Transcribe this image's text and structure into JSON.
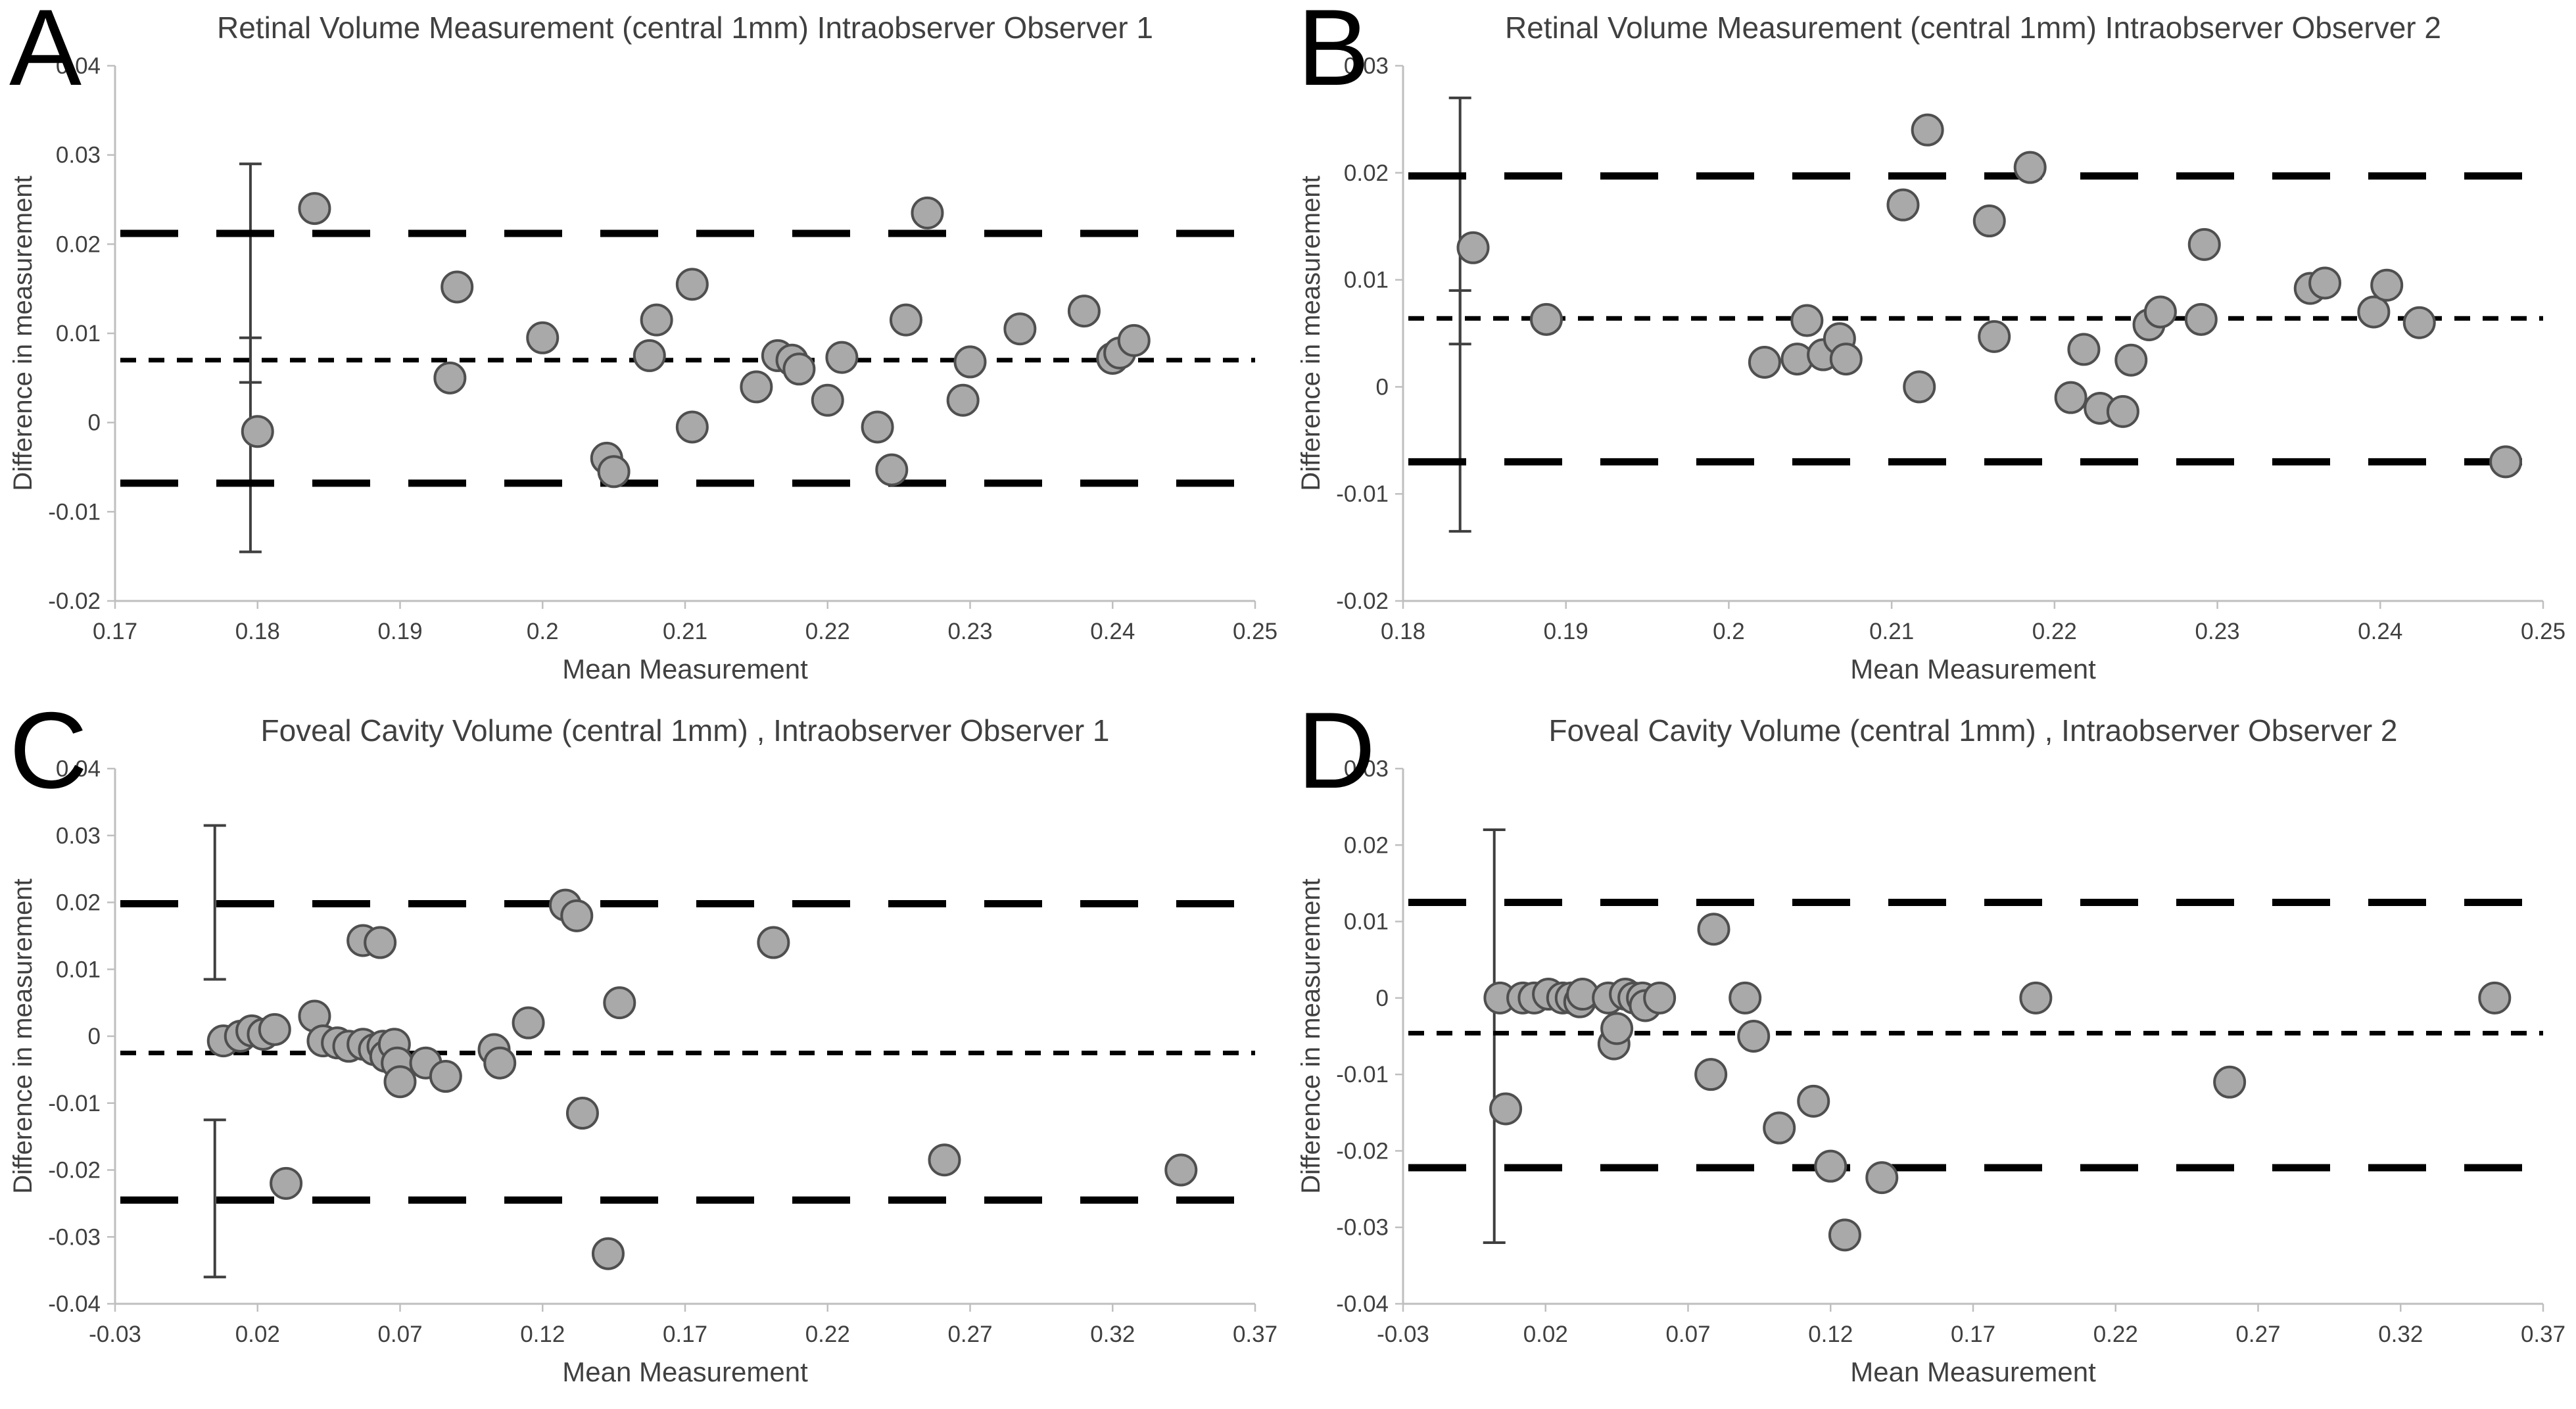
{
  "figure": {
    "background": "#ffffff"
  },
  "colors": {
    "point_fill": "#a9a9a9",
    "point_stroke": "#4f4f4f",
    "axis": "#bfbfbf",
    "text": "#404040",
    "letter": "#000000",
    "loa_line": "#000000",
    "mean_line": "#000000",
    "error_bar": "#3f3f3f"
  },
  "chart_data": [
    {
      "type": "scatter",
      "letter": "A",
      "title": "Retinal Volume Measurement (central 1mm) Intraobserver Observer 1",
      "xlabel": "Mean Measurement",
      "ylabel": "Difference in measurement",
      "xlim": [
        0.17,
        0.25
      ],
      "ylim": [
        -0.02,
        0.04
      ],
      "xticks": [
        0.17,
        0.18,
        0.19,
        0.2,
        0.21,
        0.22,
        0.23,
        0.24,
        0.25
      ],
      "xtick_labels": [
        "0.17",
        "0.18",
        "0.19",
        "0.2",
        "0.21",
        "0.22",
        "0.23",
        "0.24",
        "0.25"
      ],
      "yticks": [
        -0.02,
        -0.01,
        0,
        0.01,
        0.02,
        0.03,
        0.04
      ],
      "ytick_labels": [
        "-0.02",
        "-0.01",
        "0",
        "0.01",
        "0.02",
        "0.03",
        "0.04"
      ],
      "grid": false,
      "legend": false,
      "reference_lines": {
        "upper_loa": 0.0212,
        "mean_bias": 0.007,
        "lower_loa": -0.0068
      },
      "error_bars": [
        {
          "x": 0.1795,
          "y_low": -0.0145,
          "y_high": 0.029
        },
        {
          "x": 0.1795,
          "y_low": 0.0045,
          "y_high": 0.0095
        }
      ],
      "points": [
        [
          0.18,
          -0.001
        ],
        [
          0.184,
          0.024
        ],
        [
          0.1935,
          0.005
        ],
        [
          0.194,
          0.0152
        ],
        [
          0.2,
          0.0095
        ],
        [
          0.2045,
          -0.004
        ],
        [
          0.205,
          -0.0055
        ],
        [
          0.2075,
          0.0075
        ],
        [
          0.208,
          0.0115
        ],
        [
          0.2105,
          0.0155
        ],
        [
          0.2105,
          -0.0005
        ],
        [
          0.215,
          0.004
        ],
        [
          0.2165,
          0.0075
        ],
        [
          0.2175,
          0.007
        ],
        [
          0.218,
          0.006
        ],
        [
          0.22,
          0.0025
        ],
        [
          0.221,
          0.0073
        ],
        [
          0.2235,
          -0.0005
        ],
        [
          0.2245,
          -0.0053
        ],
        [
          0.2255,
          0.0115
        ],
        [
          0.227,
          0.0235
        ],
        [
          0.2295,
          0.0025
        ],
        [
          0.23,
          0.0068
        ],
        [
          0.2335,
          0.0105
        ],
        [
          0.238,
          0.0125
        ],
        [
          0.24,
          0.0072
        ],
        [
          0.2405,
          0.0078
        ],
        [
          0.2415,
          0.0092
        ]
      ]
    },
    {
      "type": "scatter",
      "letter": "B",
      "title": "Retinal Volume Measurement (central 1mm) Intraobserver Observer 2",
      "xlabel": "Mean Measurement",
      "ylabel": "Difference in measurement",
      "xlim": [
        0.18,
        0.25
      ],
      "ylim": [
        -0.02,
        0.03
      ],
      "xticks": [
        0.18,
        0.19,
        0.2,
        0.21,
        0.22,
        0.23,
        0.24,
        0.25
      ],
      "xtick_labels": [
        "0.18",
        "0.19",
        "0.2",
        "0.21",
        "0.22",
        "0.23",
        "0.24",
        "0.25"
      ],
      "yticks": [
        -0.02,
        -0.01,
        0,
        0.01,
        0.02,
        0.03
      ],
      "ytick_labels": [
        "-0.02",
        "-0.01",
        "0",
        "0.01",
        "0.02",
        "0.03"
      ],
      "grid": false,
      "legend": false,
      "reference_lines": {
        "upper_loa": 0.0197,
        "mean_bias": 0.0064,
        "lower_loa": -0.007
      },
      "error_bars": [
        {
          "x": 0.1835,
          "y_low": -0.0135,
          "y_high": 0.027
        },
        {
          "x": 0.1835,
          "y_low": 0.004,
          "y_high": 0.009
        }
      ],
      "points": [
        [
          0.1843,
          0.013
        ],
        [
          0.1888,
          0.0063
        ],
        [
          0.2022,
          0.0023
        ],
        [
          0.2042,
          0.0026
        ],
        [
          0.2048,
          0.0062
        ],
        [
          0.2058,
          0.003
        ],
        [
          0.2068,
          0.0045
        ],
        [
          0.2072,
          0.0026
        ],
        [
          0.2107,
          0.017
        ],
        [
          0.2122,
          0.024
        ],
        [
          0.2117,
          0.0
        ],
        [
          0.216,
          0.0155
        ],
        [
          0.2163,
          0.0047
        ],
        [
          0.2185,
          0.0205
        ],
        [
          0.221,
          -0.001
        ],
        [
          0.2218,
          0.0035
        ],
        [
          0.2228,
          -0.002
        ],
        [
          0.2242,
          -0.0023
        ],
        [
          0.2247,
          0.0025
        ],
        [
          0.2258,
          0.0058
        ],
        [
          0.2265,
          0.007
        ],
        [
          0.2292,
          0.0133
        ],
        [
          0.229,
          0.0063
        ],
        [
          0.2357,
          0.0092
        ],
        [
          0.2366,
          0.0097
        ],
        [
          0.2396,
          0.007
        ],
        [
          0.2404,
          0.0095
        ],
        [
          0.2424,
          0.006
        ],
        [
          0.2477,
          -0.007
        ]
      ]
    },
    {
      "type": "scatter",
      "letter": "C",
      "title": "Foveal Cavity Volume (central 1mm) , Intraobserver Observer 1",
      "xlabel": "Mean Measurement",
      "ylabel": "Difference in measurement",
      "xlim": [
        -0.03,
        0.37
      ],
      "ylim": [
        -0.04,
        0.04
      ],
      "xticks": [
        -0.03,
        0.02,
        0.07,
        0.12,
        0.17,
        0.22,
        0.27,
        0.32,
        0.37
      ],
      "xtick_labels": [
        "-0.03",
        "0.02",
        "0.07",
        "0.12",
        "0.17",
        "0.22",
        "0.27",
        "0.32",
        "0.37"
      ],
      "yticks": [
        -0.04,
        -0.03,
        -0.02,
        -0.01,
        0,
        0.01,
        0.02,
        0.03,
        0.04
      ],
      "ytick_labels": [
        "-0.04",
        "-0.03",
        "-0.02",
        "-0.01",
        "0",
        "0.01",
        "0.02",
        "0.03",
        "0.04"
      ],
      "grid": false,
      "legend": false,
      "reference_lines": {
        "upper_loa": 0.0198,
        "mean_bias": -0.0025,
        "lower_loa": -0.0245
      },
      "error_bars": [
        {
          "x": 0.005,
          "y_low": 0.0085,
          "y_high": 0.0315
        },
        {
          "x": 0.005,
          "y_low": -0.036,
          "y_high": -0.0125
        }
      ],
      "points": [
        [
          0.008,
          -0.0007
        ],
        [
          0.014,
          0.0
        ],
        [
          0.018,
          0.0008
        ],
        [
          0.022,
          0.0003
        ],
        [
          0.026,
          0.001
        ],
        [
          0.03,
          -0.022
        ],
        [
          0.04,
          0.003
        ],
        [
          0.043,
          -0.0007
        ],
        [
          0.048,
          -0.001
        ],
        [
          0.052,
          -0.0015
        ],
        [
          0.057,
          0.0143
        ],
        [
          0.063,
          0.014
        ],
        [
          0.057,
          -0.0012
        ],
        [
          0.061,
          -0.002
        ],
        [
          0.064,
          -0.0015
        ],
        [
          0.065,
          -0.003
        ],
        [
          0.068,
          -0.0012
        ],
        [
          0.069,
          -0.004
        ],
        [
          0.07,
          -0.0068
        ],
        [
          0.079,
          -0.004
        ],
        [
          0.086,
          -0.006
        ],
        [
          0.103,
          -0.002
        ],
        [
          0.105,
          -0.004
        ],
        [
          0.115,
          0.002
        ],
        [
          0.128,
          0.0196
        ],
        [
          0.132,
          0.018
        ],
        [
          0.134,
          -0.0115
        ],
        [
          0.143,
          -0.0325
        ],
        [
          0.147,
          0.005
        ],
        [
          0.201,
          0.014
        ],
        [
          0.261,
          -0.0185
        ],
        [
          0.344,
          -0.02
        ]
      ]
    },
    {
      "type": "scatter",
      "letter": "D",
      "title": "Foveal Cavity Volume (central 1mm) , Intraobserver Observer 2",
      "xlabel": "Mean Measurement",
      "ylabel": "Difference in measurement",
      "xlim": [
        -0.03,
        0.37
      ],
      "ylim": [
        -0.04,
        0.03
      ],
      "xticks": [
        -0.03,
        0.02,
        0.07,
        0.12,
        0.17,
        0.22,
        0.27,
        0.32,
        0.37
      ],
      "xtick_labels": [
        "-0.03",
        "0.02",
        "0.07",
        "0.12",
        "0.17",
        "0.22",
        "0.27",
        "0.32",
        "0.37"
      ],
      "yticks": [
        -0.04,
        -0.03,
        -0.02,
        -0.01,
        0,
        0.01,
        0.02,
        0.03
      ],
      "ytick_labels": [
        "-0.04",
        "-0.03",
        "-0.02",
        "-0.01",
        "0",
        "0.01",
        "0.02",
        "0.03"
      ],
      "grid": false,
      "legend": false,
      "reference_lines": {
        "upper_loa": 0.0125,
        "mean_bias": -0.0046,
        "lower_loa": -0.0222
      },
      "error_bars": [
        {
          "x": 0.002,
          "y_low": -0.032,
          "y_high": 0.022
        }
      ],
      "points": [
        [
          0.004,
          0.0
        ],
        [
          0.006,
          -0.0145
        ],
        [
          0.012,
          0.0
        ],
        [
          0.016,
          0.0
        ],
        [
          0.021,
          0.0005
        ],
        [
          0.026,
          0.0
        ],
        [
          0.029,
          0.0
        ],
        [
          0.032,
          -0.0005
        ],
        [
          0.033,
          0.0005
        ],
        [
          0.042,
          0.0
        ],
        [
          0.044,
          -0.006
        ],
        [
          0.045,
          -0.004
        ],
        [
          0.048,
          0.0005
        ],
        [
          0.051,
          0.0
        ],
        [
          0.054,
          0.0
        ],
        [
          0.055,
          -0.001
        ],
        [
          0.06,
          0.0
        ],
        [
          0.078,
          -0.01
        ],
        [
          0.079,
          0.009
        ],
        [
          0.09,
          0.0
        ],
        [
          0.093,
          -0.005
        ],
        [
          0.102,
          -0.017
        ],
        [
          0.114,
          -0.0135
        ],
        [
          0.12,
          -0.022
        ],
        [
          0.125,
          -0.031
        ],
        [
          0.138,
          -0.0235
        ],
        [
          0.192,
          0.0
        ],
        [
          0.26,
          -0.011
        ],
        [
          0.353,
          0.0
        ]
      ]
    }
  ]
}
